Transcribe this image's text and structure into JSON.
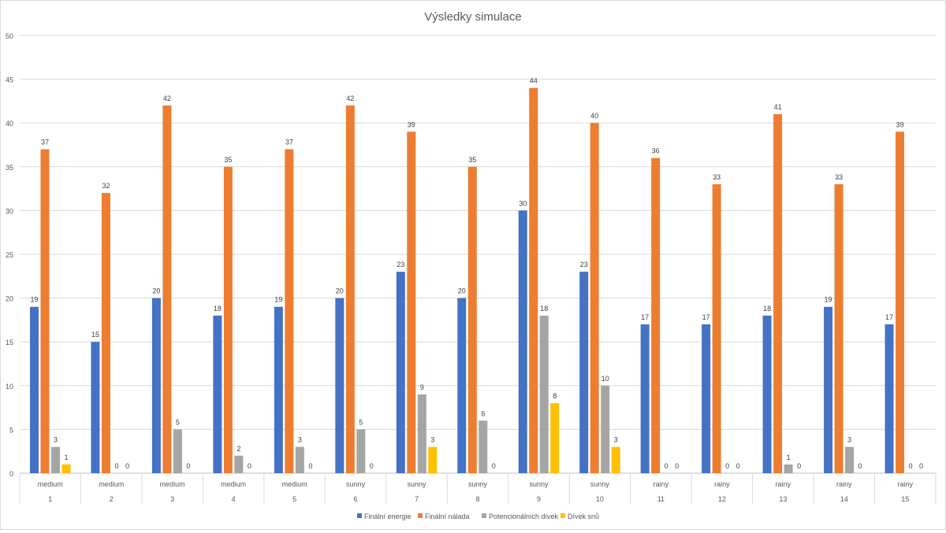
{
  "chart_data": {
    "type": "bar",
    "title": "Výsledky simulace",
    "categories": [
      "1",
      "2",
      "3",
      "4",
      "5",
      "6",
      "7",
      "8",
      "9",
      "10",
      "11",
      "12",
      "13",
      "14",
      "15"
    ],
    "category_groups": [
      "medium",
      "medium",
      "medium",
      "medium",
      "medium",
      "sunny",
      "sunny",
      "sunny",
      "sunny",
      "sunny",
      "rainy",
      "rainy",
      "rainy",
      "rainy",
      "rainy"
    ],
    "series": [
      {
        "name": "Finální energie",
        "color": "#4472C4",
        "values": [
          19,
          15,
          20,
          18,
          19,
          20,
          23,
          20,
          30,
          23,
          17,
          17,
          18,
          19,
          17
        ]
      },
      {
        "name": "Finální nálada",
        "color": "#ED7D31",
        "values": [
          37,
          32,
          42,
          35,
          37,
          42,
          39,
          35,
          44,
          40,
          36,
          33,
          41,
          33,
          39
        ]
      },
      {
        "name": "Potencionálních dívek",
        "color": "#A5A5A5",
        "values": [
          3,
          0,
          5,
          2,
          3,
          5,
          9,
          6,
          18,
          10,
          0,
          0,
          1,
          3,
          0
        ]
      },
      {
        "name": "Dívek snů",
        "color": "#FFC000",
        "values": [
          1,
          0,
          0,
          0,
          0,
          0,
          3,
          0,
          8,
          3,
          0,
          0,
          0,
          0,
          0
        ]
      }
    ],
    "ylim": [
      0,
      50
    ],
    "yticks": [
      0,
      5,
      10,
      15,
      20,
      25,
      30,
      35,
      40,
      45,
      50
    ],
    "grid": true,
    "data_labels": true,
    "legend": "bottom",
    "xlabel": "",
    "ylabel": ""
  }
}
